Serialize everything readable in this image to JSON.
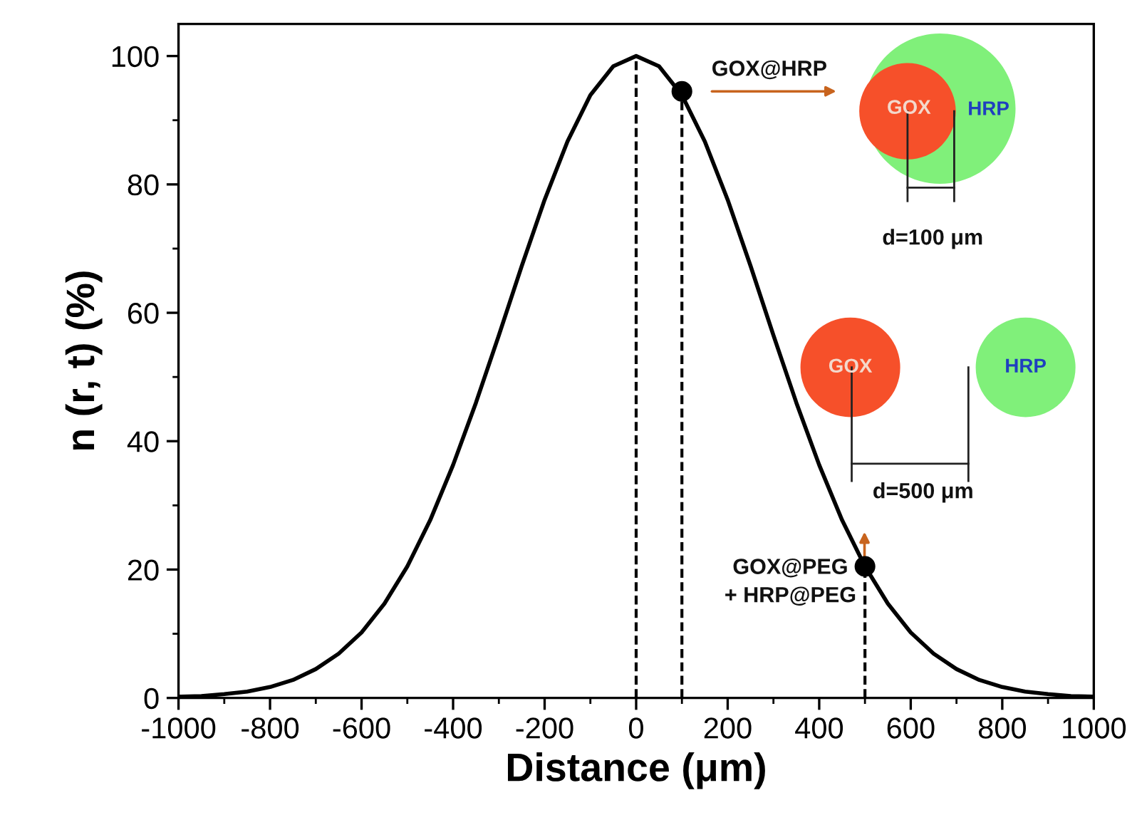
{
  "chart_data": {
    "type": "line",
    "xlabel": "Distance (μm)",
    "ylabel": "n (r, t) (%)",
    "xlim": [
      -1000,
      1000
    ],
    "ylim": [
      0,
      105
    ],
    "xticks": [
      -1000,
      -800,
      -600,
      -400,
      -200,
      0,
      200,
      400,
      600,
      800,
      1000
    ],
    "yticks": [
      0,
      20,
      40,
      60,
      80,
      100
    ],
    "series": [
      {
        "color": "#000000",
        "line_style": "solid",
        "x": [
          -1000,
          -950,
          -900,
          -850,
          -800,
          -750,
          -700,
          -650,
          -600,
          -550,
          -500,
          -450,
          -400,
          -350,
          -300,
          -250,
          -200,
          -150,
          -100,
          -50,
          0,
          50,
          100,
          150,
          200,
          250,
          300,
          350,
          400,
          450,
          500,
          550,
          600,
          650,
          700,
          750,
          800,
          850,
          900,
          950,
          1000
        ],
        "values": [
          0.2,
          0.3,
          0.6,
          1.0,
          1.7,
          2.8,
          4.5,
          6.9,
          10.2,
          14.7,
          20.5,
          27.7,
          36.3,
          46.0,
          56.5,
          67.3,
          77.6,
          86.7,
          93.9,
          98.4,
          100,
          98.4,
          93.9,
          86.7,
          77.6,
          67.3,
          56.5,
          46.0,
          36.3,
          27.7,
          20.5,
          14.7,
          10.2,
          6.9,
          4.5,
          2.8,
          1.7,
          1.0,
          0.6,
          0.3,
          0.2
        ]
      },
      {
        "type": "scatter",
        "color": "#000000",
        "marker": "circle",
        "x": [
          100,
          500
        ],
        "values": [
          94.5,
          20.5
        ]
      }
    ],
    "ref_lines": [
      {
        "axis": "x",
        "value": 0,
        "color": "#000000",
        "line_style": "dashed"
      },
      {
        "axis": "x",
        "value": 100,
        "color": "#000000",
        "line_style": "dashed"
      },
      {
        "axis": "x",
        "value": 500,
        "color": "#000000",
        "line_style": "dashed"
      }
    ],
    "annotations": [
      "GOX@HRP",
      "GOX",
      "HRP",
      "d=100 μm",
      "GOX",
      "HRP",
      "d=500 μm",
      "GOX@PEG\n+ HRP@PEG"
    ]
  }
}
